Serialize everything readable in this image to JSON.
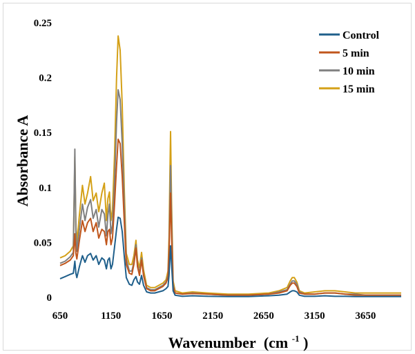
{
  "chart_data": {
    "type": "line",
    "title": "",
    "xlabel": "Wavenumber",
    "xlabel_unit": "(cm",
    "xlabel_unit_sup": "-1",
    "xlabel_unit_close": ")",
    "ylabel": "Absorbance A",
    "xlim": [
      650,
      4000
    ],
    "ylim": [
      0,
      0.25
    ],
    "x_ticks": [
      650,
      1150,
      1650,
      2150,
      2650,
      3150,
      3650
    ],
    "x_tick_labels": [
      "650",
      "1150",
      "1650",
      "2150",
      "2650",
      "3150",
      "3650"
    ],
    "y_ticks": [
      0,
      0.05,
      0.1,
      0.15,
      0.2,
      0.25
    ],
    "y_tick_labels": [
      "0",
      "0.05",
      "0.1",
      "0.15",
      "0.2",
      "0.25"
    ],
    "grid": false,
    "legend_position": "top-right",
    "series": [
      {
        "name": "Control",
        "color": "#1f5f8b",
        "x": [
          650,
          700,
          750,
          780,
          795,
          805,
          815,
          840,
          870,
          895,
          920,
          950,
          975,
          1005,
          1030,
          1060,
          1085,
          1105,
          1120,
          1135,
          1150,
          1165,
          1185,
          1205,
          1220,
          1240,
          1260,
          1280,
          1300,
          1330,
          1355,
          1375,
          1395,
          1410,
          1430,
          1450,
          1470,
          1500,
          1540,
          1580,
          1620,
          1660,
          1690,
          1710,
          1720,
          1728,
          1735,
          1745,
          1760,
          1780,
          1850,
          1950,
          2100,
          2300,
          2500,
          2700,
          2800,
          2880,
          2910,
          2930,
          2950,
          2975,
          3000,
          3050,
          3150,
          3250,
          3350,
          3450,
          3550,
          3650,
          3800,
          4000
        ],
        "y": [
          0.017,
          0.019,
          0.021,
          0.022,
          0.033,
          0.022,
          0.018,
          0.028,
          0.038,
          0.032,
          0.038,
          0.04,
          0.034,
          0.038,
          0.03,
          0.036,
          0.034,
          0.026,
          0.034,
          0.036,
          0.026,
          0.03,
          0.046,
          0.062,
          0.073,
          0.072,
          0.06,
          0.038,
          0.018,
          0.012,
          0.011,
          0.016,
          0.019,
          0.014,
          0.012,
          0.02,
          0.011,
          0.005,
          0.004,
          0.004,
          0.005,
          0.006,
          0.008,
          0.01,
          0.02,
          0.035,
          0.047,
          0.03,
          0.006,
          0.002,
          0.001,
          0.0015,
          0.001,
          0.0008,
          0.0008,
          0.0015,
          0.002,
          0.003,
          0.005,
          0.006,
          0.006,
          0.005,
          0.002,
          0.001,
          0.001,
          0.0015,
          0.001,
          0.001,
          0.0008,
          0.0008,
          0.0008,
          0.0008
        ]
      },
      {
        "name": "5 min",
        "color": "#c0561c",
        "x": [
          650,
          700,
          750,
          780,
          795,
          805,
          815,
          840,
          870,
          895,
          920,
          950,
          975,
          1005,
          1030,
          1060,
          1085,
          1105,
          1120,
          1135,
          1150,
          1165,
          1185,
          1205,
          1220,
          1240,
          1260,
          1280,
          1300,
          1330,
          1355,
          1375,
          1395,
          1410,
          1430,
          1450,
          1470,
          1500,
          1540,
          1580,
          1620,
          1660,
          1690,
          1710,
          1720,
          1728,
          1735,
          1745,
          1760,
          1780,
          1850,
          1950,
          2100,
          2300,
          2500,
          2700,
          2800,
          2880,
          2910,
          2930,
          2950,
          2975,
          3000,
          3050,
          3150,
          3250,
          3350,
          3450,
          3550,
          3650,
          3800,
          4000
        ],
        "y": [
          0.029,
          0.031,
          0.034,
          0.038,
          0.058,
          0.04,
          0.035,
          0.052,
          0.07,
          0.06,
          0.068,
          0.072,
          0.06,
          0.068,
          0.054,
          0.062,
          0.06,
          0.048,
          0.06,
          0.062,
          0.048,
          0.054,
          0.085,
          0.12,
          0.144,
          0.14,
          0.11,
          0.07,
          0.03,
          0.022,
          0.021,
          0.03,
          0.045,
          0.028,
          0.02,
          0.034,
          0.02,
          0.008,
          0.006,
          0.006,
          0.008,
          0.01,
          0.013,
          0.018,
          0.04,
          0.07,
          0.095,
          0.055,
          0.01,
          0.004,
          0.003,
          0.0035,
          0.003,
          0.002,
          0.002,
          0.003,
          0.004,
          0.006,
          0.011,
          0.013,
          0.013,
          0.01,
          0.004,
          0.003,
          0.003,
          0.004,
          0.004,
          0.003,
          0.002,
          0.002,
          0.002,
          0.002
        ]
      },
      {
        "name": "10 min",
        "color": "#7f7f7f",
        "x": [
          650,
          700,
          750,
          780,
          795,
          805,
          815,
          840,
          870,
          895,
          920,
          950,
          975,
          1005,
          1030,
          1060,
          1085,
          1105,
          1120,
          1135,
          1150,
          1165,
          1185,
          1205,
          1220,
          1240,
          1260,
          1280,
          1300,
          1330,
          1355,
          1375,
          1395,
          1410,
          1430,
          1450,
          1470,
          1500,
          1540,
          1580,
          1620,
          1660,
          1690,
          1710,
          1720,
          1728,
          1735,
          1745,
          1760,
          1780,
          1850,
          1950,
          2100,
          2300,
          2500,
          2700,
          2800,
          2880,
          2910,
          2930,
          2950,
          2975,
          3000,
          3050,
          3150,
          3250,
          3350,
          3450,
          3550,
          3650,
          3800,
          4000
        ],
        "y": [
          0.031,
          0.033,
          0.037,
          0.041,
          0.135,
          0.06,
          0.042,
          0.062,
          0.085,
          0.07,
          0.082,
          0.089,
          0.072,
          0.08,
          0.064,
          0.08,
          0.076,
          0.056,
          0.075,
          0.085,
          0.058,
          0.066,
          0.105,
          0.16,
          0.189,
          0.18,
          0.14,
          0.085,
          0.035,
          0.024,
          0.024,
          0.032,
          0.048,
          0.03,
          0.022,
          0.036,
          0.021,
          0.009,
          0.007,
          0.007,
          0.009,
          0.011,
          0.014,
          0.02,
          0.045,
          0.085,
          0.12,
          0.07,
          0.012,
          0.004,
          0.003,
          0.004,
          0.003,
          0.002,
          0.002,
          0.003,
          0.005,
          0.007,
          0.012,
          0.015,
          0.015,
          0.012,
          0.005,
          0.003,
          0.003,
          0.004,
          0.004,
          0.003,
          0.003,
          0.002,
          0.002,
          0.002
        ]
      },
      {
        "name": "15 min",
        "color": "#d4a017",
        "x": [
          650,
          700,
          750,
          780,
          795,
          805,
          815,
          840,
          870,
          895,
          920,
          950,
          975,
          1005,
          1030,
          1060,
          1085,
          1105,
          1120,
          1135,
          1150,
          1165,
          1185,
          1205,
          1220,
          1240,
          1260,
          1280,
          1300,
          1330,
          1355,
          1375,
          1395,
          1410,
          1430,
          1450,
          1470,
          1500,
          1540,
          1580,
          1620,
          1660,
          1690,
          1710,
          1720,
          1728,
          1735,
          1745,
          1760,
          1780,
          1850,
          1950,
          2100,
          2300,
          2500,
          2700,
          2800,
          2880,
          2910,
          2930,
          2950,
          2975,
          3000,
          3050,
          3150,
          3250,
          3350,
          3450,
          3550,
          3650,
          3800,
          4000
        ],
        "y": [
          0.036,
          0.038,
          0.042,
          0.047,
          0.128,
          0.065,
          0.05,
          0.075,
          0.102,
          0.085,
          0.095,
          0.11,
          0.088,
          0.095,
          0.078,
          0.095,
          0.104,
          0.07,
          0.09,
          0.096,
          0.07,
          0.08,
          0.13,
          0.2,
          0.238,
          0.225,
          0.175,
          0.1,
          0.04,
          0.03,
          0.03,
          0.038,
          0.052,
          0.034,
          0.027,
          0.041,
          0.025,
          0.011,
          0.009,
          0.009,
          0.011,
          0.013,
          0.016,
          0.024,
          0.055,
          0.11,
          0.151,
          0.085,
          0.015,
          0.006,
          0.004,
          0.005,
          0.004,
          0.003,
          0.003,
          0.004,
          0.006,
          0.009,
          0.015,
          0.018,
          0.018,
          0.014,
          0.006,
          0.004,
          0.005,
          0.006,
          0.006,
          0.005,
          0.004,
          0.004,
          0.004,
          0.004
        ]
      }
    ]
  }
}
